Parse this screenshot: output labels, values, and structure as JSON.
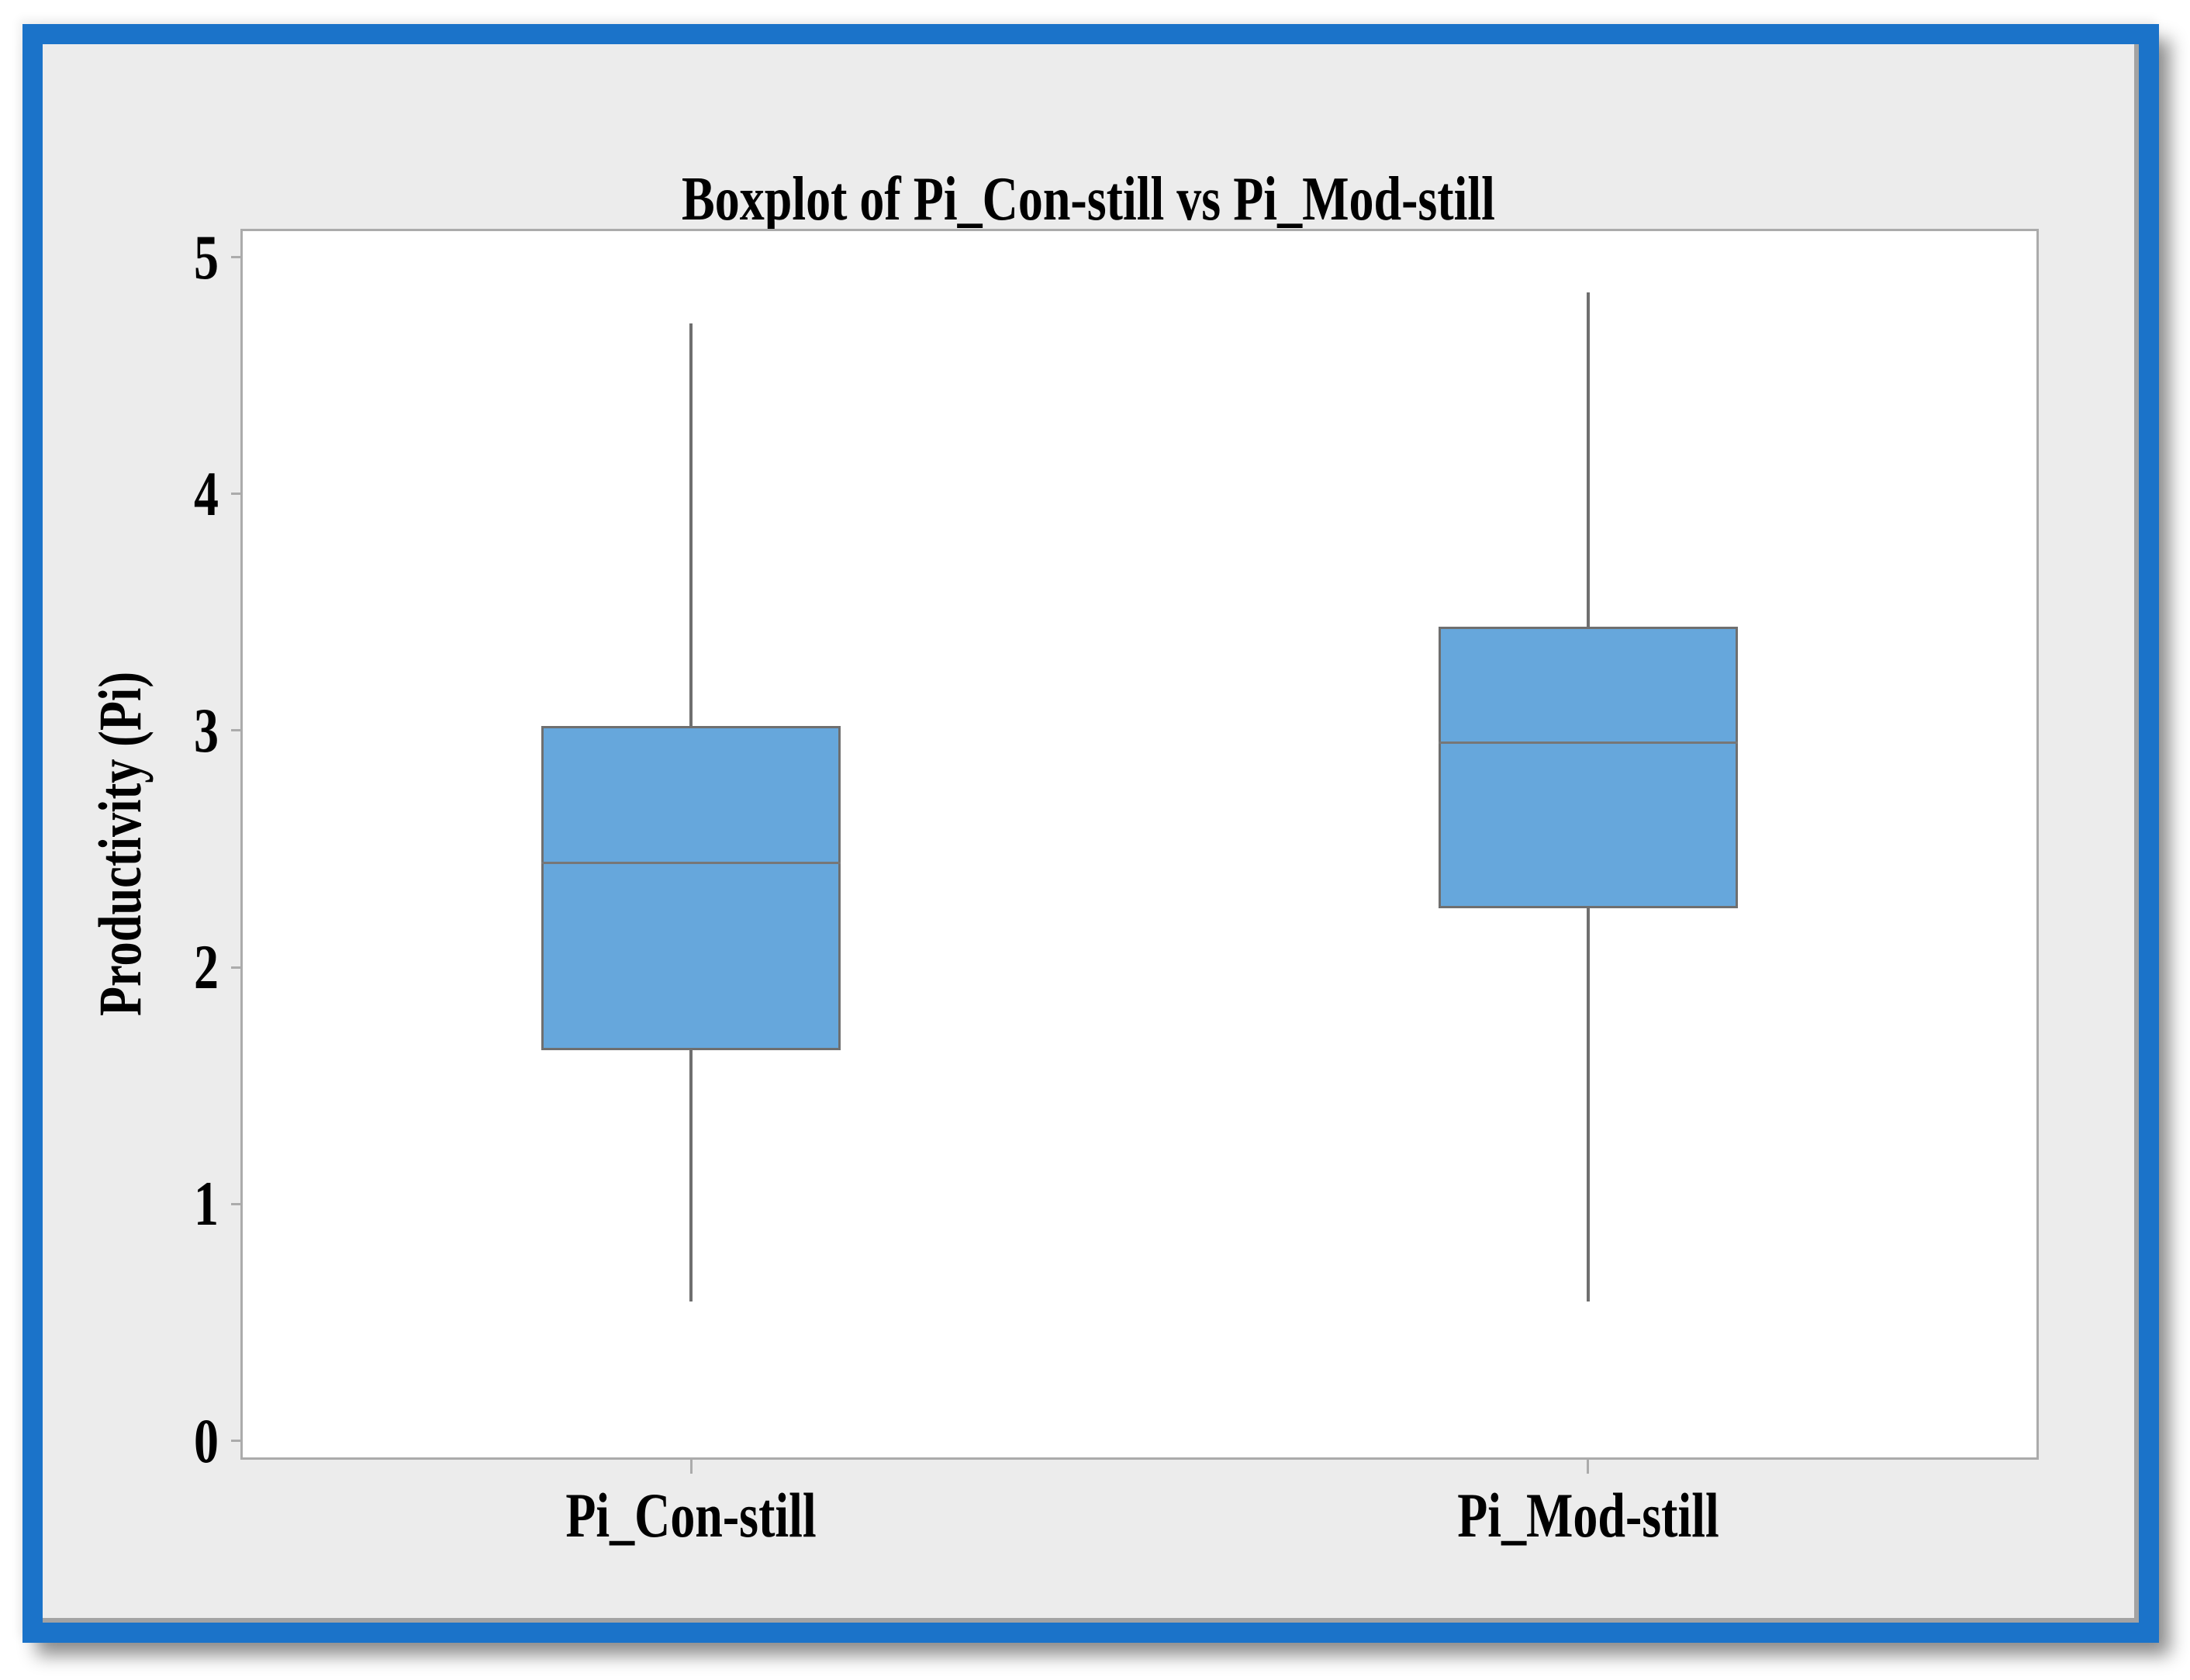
{
  "title": "Boxplot of Pi_Con-still vs Pi_Mod-still",
  "y_axis": {
    "label": "Productivity (Pi)",
    "tick_labels": [
      "5",
      "4",
      "3",
      "2",
      "1",
      "0"
    ]
  },
  "x_axis": {
    "category_labels": [
      "Pi_Con-still",
      "Pi_Mod-still"
    ]
  },
  "colors": {
    "frame_blue": "#1B73C9",
    "panel_gray": "#ECECEC",
    "box_fill": "#66A7DC",
    "box_stroke": "#6F6F6F",
    "axis_gray": "#ABABAB"
  },
  "chart_data": {
    "type": "boxplot",
    "title": "Boxplot of Pi_Con-still vs Pi_Mod-still",
    "xlabel": "",
    "ylabel": "Productivity (Pi)",
    "categories": [
      "Pi_Con-still",
      "Pi_Mod-still"
    ],
    "series": [
      {
        "name": "Pi_Con-still",
        "whisker_low": 0.59,
        "q1": 1.65,
        "median": 2.44,
        "q3": 3.02,
        "whisker_high": 4.72
      },
      {
        "name": "Pi_Mod-still",
        "whisker_low": 0.59,
        "q1": 2.25,
        "median": 2.95,
        "q3": 3.44,
        "whisker_high": 4.85
      }
    ],
    "yticks": [
      5,
      4,
      3,
      2,
      1,
      0
    ],
    "ylim": [
      -0.07,
      5.11
    ],
    "grid": false,
    "legend": false,
    "outliers": []
  }
}
